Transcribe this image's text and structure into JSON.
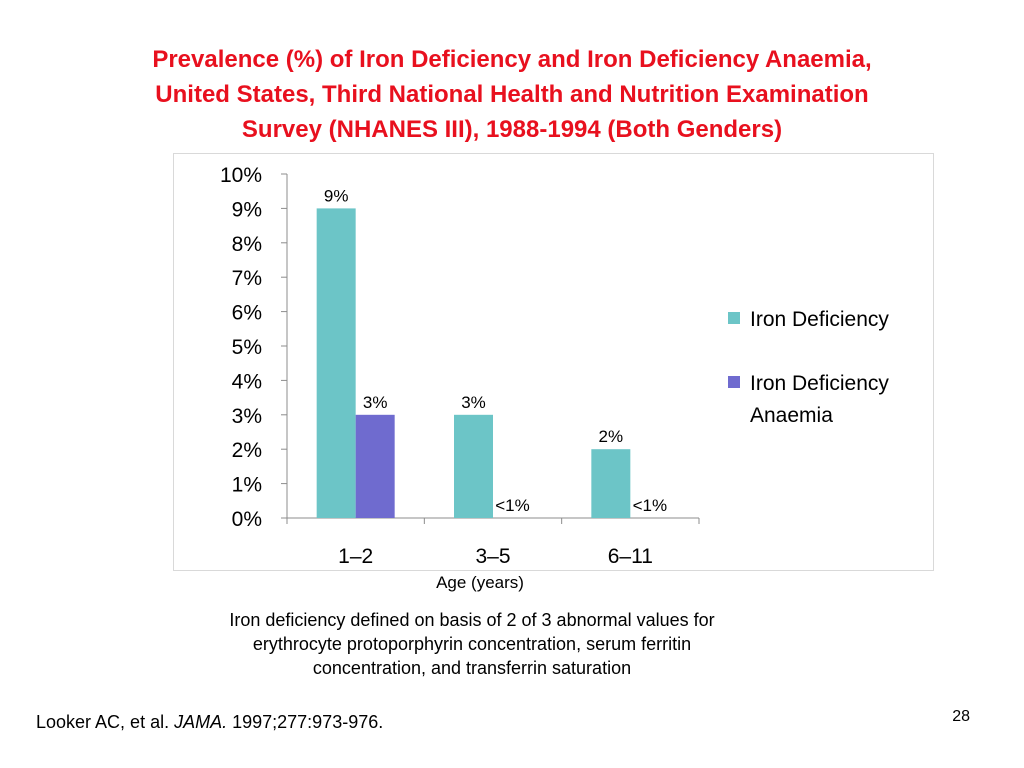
{
  "slide": {
    "title_lines": [
      "Prevalence (%) of Iron Deficiency and Iron Deficiency Anaemia,",
      "United States, Third National Health and Nutrition Examination",
      "Survey (NHANES III), 1988-1994 (Both Genders)"
    ],
    "xlabel": "Age (years)",
    "note_lines": [
      "Iron deficiency defined on basis of 2 of 3 abnormal values for",
      "erythrocyte protoporphyrin concentration, serum ferritin",
      "concentration, and transferrin saturation"
    ],
    "citation_author": "Looker AC, et al. ",
    "citation_journal": "JAMA.",
    "citation_rest": " 1997;277:973-976.",
    "page_number": "28"
  },
  "chart_data": {
    "type": "bar",
    "categories": [
      "1–2",
      "3–5",
      "6–11"
    ],
    "series": [
      {
        "name": "Iron Deficiency",
        "color": "#6cc5c7",
        "values": [
          9,
          3,
          2
        ],
        "labels": [
          "9%",
          "3%",
          "2%"
        ]
      },
      {
        "name": "Iron Deficiency Anaemia",
        "legend_lines": [
          "Iron Deficiency",
          "Anaemia"
        ],
        "color": "#6f6bcf",
        "values": [
          3,
          0,
          0
        ],
        "labels": [
          "3%",
          "<1%",
          "<1%"
        ]
      }
    ],
    "yticks": [
      "0%",
      "1%",
      "2%",
      "3%",
      "4%",
      "5%",
      "6%",
      "7%",
      "8%",
      "9%",
      "10%"
    ],
    "ylim": [
      0,
      10
    ],
    "grid": false,
    "legend_position": "right"
  }
}
